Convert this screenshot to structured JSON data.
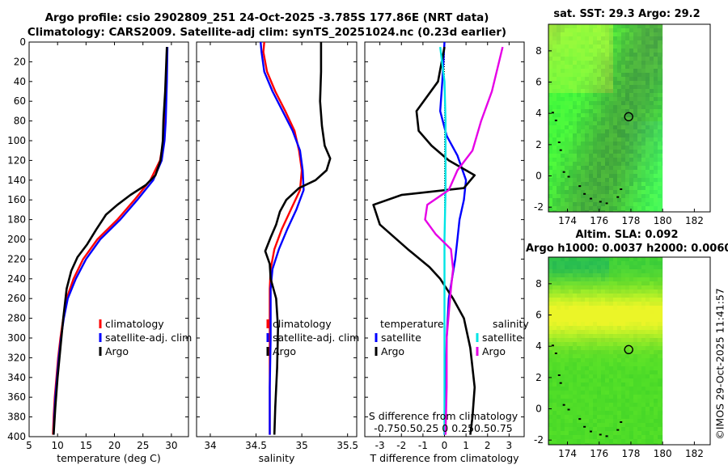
{
  "title_line1": "Argo profile: csio 2902809_251 24-Oct-2025 -3.785S 177.86E (NRT data)",
  "title_line2": "Climatology: CARS2009. Satellite-adj clim: synTS_20251024.nc (0.23d earlier)",
  "map_sst_title": "sat. SST: 29.3 Argo: 29.2",
  "map_sla_title1": "Altim. SLA: 0.092",
  "map_sla_title2": "Argo h1000: 0.0037 h2000: 0.0060",
  "watermark": "©IMOS 29-Oct-2025 11:41:57",
  "colors": {
    "climatology": "#ff0000",
    "satellite": "#0000ff",
    "argo": "#000000",
    "sat_salinity": "#00e5e5",
    "argo_salinity": "#e600e6"
  },
  "chart_data": [
    {
      "type": "line",
      "name": "temperature",
      "xlabel": "temperature (deg C)",
      "xlim": [
        5,
        33
      ],
      "xticks": [
        5,
        10,
        15,
        20,
        25,
        30
      ],
      "ylim": [
        0,
        400
      ],
      "yticks": [
        0,
        20,
        40,
        60,
        80,
        100,
        120,
        140,
        160,
        180,
        200,
        220,
        240,
        260,
        280,
        300,
        320,
        340,
        360,
        380,
        400
      ],
      "reversed_y": true,
      "legend": [
        "climatology",
        "satellite-adj. clim",
        "Argo"
      ],
      "series": [
        {
          "name": "climatology",
          "color": "#ff0000",
          "points": [
            [
              29.2,
              5
            ],
            [
              29.1,
              40
            ],
            [
              28.9,
              80
            ],
            [
              28.6,
              100
            ],
            [
              28.0,
              120
            ],
            [
              26.3,
              140
            ],
            [
              23.5,
              160
            ],
            [
              20.5,
              180
            ],
            [
              17.0,
              200
            ],
            [
              14.5,
              220
            ],
            [
              12.8,
              240
            ],
            [
              11.6,
              260
            ],
            [
              11.0,
              280
            ],
            [
              10.5,
              300
            ],
            [
              10.1,
              320
            ],
            [
              9.8,
              340
            ],
            [
              9.5,
              360
            ],
            [
              9.3,
              380
            ],
            [
              9.2,
              398
            ]
          ]
        },
        {
          "name": "satellite-adj. clim",
          "color": "#0000ff",
          "points": [
            [
              29.3,
              5
            ],
            [
              29.2,
              40
            ],
            [
              29.0,
              80
            ],
            [
              28.8,
              100
            ],
            [
              28.3,
              120
            ],
            [
              26.8,
              140
            ],
            [
              24.0,
              160
            ],
            [
              21.0,
              180
            ],
            [
              17.5,
              200
            ],
            [
              15.0,
              220
            ],
            [
              13.2,
              240
            ],
            [
              11.8,
              260
            ],
            [
              11.1,
              280
            ],
            [
              10.6,
              300
            ],
            [
              10.2,
              320
            ],
            [
              9.9,
              340
            ],
            [
              9.6,
              360
            ],
            [
              9.4,
              380
            ],
            [
              9.3,
              398
            ]
          ]
        },
        {
          "name": "Argo",
          "color": "#000000",
          "points": [
            [
              29.2,
              5
            ],
            [
              29.1,
              20
            ],
            [
              28.9,
              50
            ],
            [
              28.6,
              80
            ],
            [
              28.5,
              100
            ],
            [
              28.1,
              120
            ],
            [
              27.2,
              135
            ],
            [
              25.5,
              145
            ],
            [
              22.8,
              155
            ],
            [
              20.5,
              165
            ],
            [
              18.5,
              175
            ],
            [
              16.8,
              190
            ],
            [
              15.2,
              205
            ],
            [
              13.5,
              218
            ],
            [
              12.4,
              232
            ],
            [
              11.6,
              250
            ],
            [
              11.0,
              280
            ],
            [
              10.5,
              310
            ],
            [
              10.0,
              340
            ],
            [
              9.6,
              370
            ],
            [
              9.3,
              398
            ]
          ]
        }
      ]
    },
    {
      "type": "line",
      "name": "salinity",
      "xlabel": "salinity",
      "xlim": [
        33.85,
        35.6
      ],
      "xticks": [
        34,
        34.5,
        35,
        35.5
      ],
      "ylim": [
        0,
        400
      ],
      "reversed_y": true,
      "legend": [
        "climatology",
        "satellite-adj. clim",
        "Argo"
      ],
      "series": [
        {
          "name": "climatology",
          "color": "#ff0000",
          "points": [
            [
              34.59,
              0
            ],
            [
              34.58,
              10
            ],
            [
              34.62,
              30
            ],
            [
              34.71,
              50
            ],
            [
              34.82,
              70
            ],
            [
              34.92,
              90
            ],
            [
              34.97,
              110
            ],
            [
              35.0,
              130
            ],
            [
              34.98,
              150
            ],
            [
              34.88,
              170
            ],
            [
              34.78,
              190
            ],
            [
              34.7,
              210
            ],
            [
              34.66,
              230
            ],
            [
              34.65,
              250
            ],
            [
              34.65,
              300
            ],
            [
              34.65,
              350
            ],
            [
              34.65,
              398
            ]
          ]
        },
        {
          "name": "satellite-adj. clim",
          "color": "#0000ff",
          "points": [
            [
              34.55,
              0
            ],
            [
              34.56,
              10
            ],
            [
              34.59,
              30
            ],
            [
              34.68,
              50
            ],
            [
              34.79,
              70
            ],
            [
              34.9,
              90
            ],
            [
              34.98,
              110
            ],
            [
              35.01,
              130
            ],
            [
              35.02,
              150
            ],
            [
              34.94,
              170
            ],
            [
              34.84,
              190
            ],
            [
              34.75,
              210
            ],
            [
              34.68,
              230
            ],
            [
              34.66,
              250
            ],
            [
              34.66,
              300
            ],
            [
              34.65,
              350
            ],
            [
              34.65,
              398
            ]
          ]
        },
        {
          "name": "Argo",
          "color": "#000000",
          "points": [
            [
              35.21,
              0
            ],
            [
              35.21,
              30
            ],
            [
              35.2,
              60
            ],
            [
              35.22,
              85
            ],
            [
              35.25,
              105
            ],
            [
              35.31,
              118
            ],
            [
              35.27,
              130
            ],
            [
              35.15,
              140
            ],
            [
              34.97,
              148
            ],
            [
              34.83,
              160
            ],
            [
              34.76,
              172
            ],
            [
              34.72,
              185
            ],
            [
              34.66,
              198
            ],
            [
              34.6,
              212
            ],
            [
              34.65,
              225
            ],
            [
              34.66,
              240
            ],
            [
              34.72,
              260
            ],
            [
              34.74,
              290
            ],
            [
              34.73,
              330
            ],
            [
              34.71,
              370
            ],
            [
              34.7,
              398
            ]
          ]
        }
      ]
    },
    {
      "type": "line",
      "name": "difference",
      "xlabel": "T difference from climatology",
      "xlim": [
        -3.7,
        3.7
      ],
      "xticks": [
        -3,
        -2,
        -1,
        0,
        1,
        2,
        3
      ],
      "top_axis_label": "S difference from climatology",
      "top_xticks": [
        "-0.75",
        "0.5",
        "0.25",
        "0",
        "0.25",
        "0.5",
        "0.75"
      ],
      "top_xticks_raw": "-0.750.50.25  0  0.250.50.75",
      "ylim": [
        0,
        400
      ],
      "reversed_y": true,
      "legend_left_title": "temperature",
      "legend_right_title": "salinity",
      "legend_left": [
        "satellite",
        "Argo"
      ],
      "legend_right": [
        "satellite",
        "Argo"
      ],
      "series": [
        {
          "name": "T satellite",
          "color": "#0000ff",
          "points": [
            [
              0.0,
              0
            ],
            [
              -0.1,
              40
            ],
            [
              -0.2,
              70
            ],
            [
              0.1,
              95
            ],
            [
              0.6,
              115
            ],
            [
              1.0,
              140
            ],
            [
              0.9,
              160
            ],
            [
              0.7,
              180
            ],
            [
              0.6,
              200
            ],
            [
              0.5,
              220
            ],
            [
              0.35,
              240
            ],
            [
              0.2,
              260
            ],
            [
              0.1,
              300
            ],
            [
              0.05,
              350
            ],
            [
              0.0,
              398
            ]
          ]
        },
        {
          "name": "T Argo",
          "color": "#000000",
          "points": [
            [
              0.0,
              5
            ],
            [
              -0.3,
              40
            ],
            [
              -1.3,
              70
            ],
            [
              -1.2,
              90
            ],
            [
              -0.6,
              105
            ],
            [
              0.2,
              120
            ],
            [
              1.4,
              135
            ],
            [
              0.9,
              148
            ],
            [
              -2.0,
              155
            ],
            [
              -3.3,
              165
            ],
            [
              -3.0,
              185
            ],
            [
              -1.7,
              210
            ],
            [
              -0.7,
              228
            ],
            [
              -0.2,
              240
            ],
            [
              0.4,
              260
            ],
            [
              0.9,
              280
            ],
            [
              1.2,
              310
            ],
            [
              1.4,
              350
            ],
            [
              1.3,
              380
            ],
            [
              1.2,
              398
            ]
          ]
        },
        {
          "name": "S satellite",
          "color": "#00e5e5",
          "points": [
            [
              -0.2,
              5
            ],
            [
              0.0,
              40
            ],
            [
              0.05,
              80
            ],
            [
              0.05,
              150
            ],
            [
              0.0,
              200
            ],
            [
              0.0,
              300
            ],
            [
              0.0,
              398
            ]
          ]
        },
        {
          "name": "S Argo",
          "color": "#e600e6",
          "points": [
            [
              2.7,
              5
            ],
            [
              2.2,
              50
            ],
            [
              1.7,
              80
            ],
            [
              1.3,
              110
            ],
            [
              0.6,
              130
            ],
            [
              0.2,
              150
            ],
            [
              -0.8,
              165
            ],
            [
              -0.9,
              180
            ],
            [
              -0.4,
              195
            ],
            [
              0.3,
              210
            ],
            [
              0.4,
              230
            ],
            [
              0.3,
              250
            ],
            [
              0.2,
              275
            ],
            [
              0.1,
              300
            ],
            [
              0.1,
              350
            ],
            [
              0.05,
              398
            ]
          ]
        }
      ]
    },
    {
      "type": "heatmap",
      "name": "sat_sst_map",
      "xlim": [
        172.8,
        183
      ],
      "ylim": [
        -2.3,
        9.7
      ],
      "xticks": [
        174,
        176,
        178,
        180,
        182
      ],
      "yticks": [
        -2,
        0,
        2,
        4,
        6,
        8
      ],
      "data_extent_lon": [
        172.8,
        180
      ],
      "argo_position": [
        177.86,
        3.785
      ],
      "colormap": "greens"
    },
    {
      "type": "heatmap",
      "name": "altim_sla_map",
      "xlim": [
        172.8,
        183
      ],
      "ylim": [
        -2.3,
        9.7
      ],
      "xticks": [
        174,
        176,
        178,
        180,
        182
      ],
      "yticks": [
        -2,
        0,
        2,
        4,
        6,
        8
      ],
      "data_extent_lon": [
        172.8,
        180
      ],
      "argo_position": [
        177.86,
        3.785
      ],
      "colormap": "green-yellow"
    }
  ]
}
